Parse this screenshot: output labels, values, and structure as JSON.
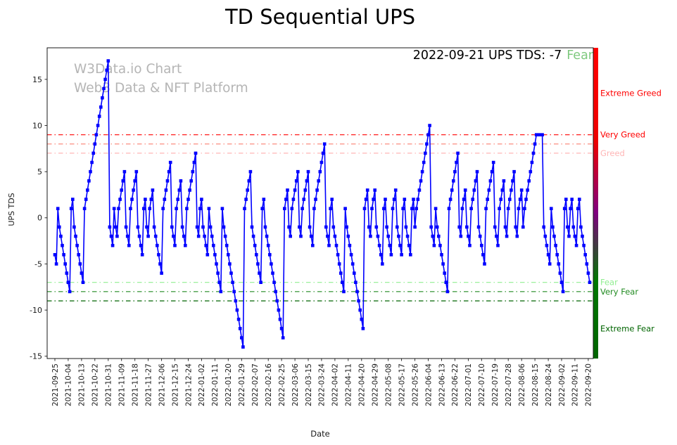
{
  "title": "TD Sequential UPS",
  "watermark": {
    "line1": "W3Data.io Chart",
    "line2": "Web3 Data & NFT Platform"
  },
  "annotation": {
    "text": "2022-09-21 UPS TDS: -7",
    "status": "Fear",
    "status_color": "#7fc97f"
  },
  "chart_data": {
    "type": "line",
    "series_name": "UPS TDS",
    "title": "TD Sequential UPS",
    "xlabel": "Date",
    "ylabel": "UPS TDS",
    "line_color": "#0000ff",
    "marker": "square",
    "start_date": "2021-09-25",
    "end_date": "2022-09-21",
    "final_point": {
      "date": "2022-09-21",
      "value": -7
    },
    "ylim": [
      -15.25,
      18.42
    ],
    "y_ticks": [
      -15,
      -10,
      -5,
      0,
      5,
      10,
      15
    ],
    "x_tick_step": 9,
    "x_tick_labels": [
      "2021-09-25",
      "2021-10-04",
      "2021-10-13",
      "2021-10-22",
      "2021-10-31",
      "2021-11-09",
      "2021-11-18",
      "2021-11-27",
      "2021-12-06",
      "2021-12-15",
      "2021-12-24",
      "2022-01-02",
      "2022-01-11",
      "2022-01-20",
      "2022-01-29",
      "2022-02-07",
      "2022-02-16",
      "2022-02-25",
      "2022-03-06",
      "2022-03-15",
      "2022-03-24",
      "2022-04-02",
      "2022-04-11",
      "2022-04-20",
      "2022-04-29",
      "2022-05-08",
      "2022-05-17",
      "2022-05-26",
      "2022-06-04",
      "2022-06-13",
      "2022-06-22",
      "2022-07-01",
      "2022-07-10",
      "2022-07-19",
      "2022-07-28",
      "2022-08-06",
      "2022-08-15",
      "2022-08-24",
      "2022-09-02",
      "2022-09-11",
      "2022-09-20"
    ],
    "values": [
      -4,
      -5,
      1,
      -1,
      -2,
      -3,
      -4,
      -5,
      -6,
      -7,
      -8,
      1,
      2,
      -1,
      -2,
      -3,
      -4,
      -5,
      -6,
      -7,
      1,
      2,
      3,
      4,
      5,
      6,
      7,
      8,
      9,
      10,
      11,
      12,
      13,
      14,
      15,
      16,
      17,
      -1,
      -2,
      -3,
      1,
      -1,
      -2,
      1,
      2,
      3,
      4,
      5,
      -1,
      -2,
      -3,
      1,
      2,
      3,
      4,
      5,
      -1,
      -2,
      -3,
      -4,
      1,
      2,
      -1,
      -2,
      1,
      2,
      3,
      -1,
      -2,
      -3,
      -4,
      -5,
      -6,
      1,
      2,
      3,
      4,
      5,
      6,
      -1,
      -2,
      -3,
      1,
      2,
      3,
      4,
      -1,
      -2,
      -3,
      1,
      2,
      3,
      4,
      5,
      6,
      7,
      -1,
      -2,
      1,
      2,
      -1,
      -2,
      -3,
      -4,
      1,
      -1,
      -2,
      -3,
      -4,
      -5,
      -6,
      -7,
      -8,
      1,
      -1,
      -2,
      -3,
      -4,
      -5,
      -6,
      -7,
      -8,
      -9,
      -10,
      -11,
      -12,
      -13,
      -14,
      1,
      2,
      3,
      4,
      5,
      -1,
      -2,
      -3,
      -4,
      -5,
      -6,
      -7,
      1,
      2,
      -1,
      -2,
      -3,
      -4,
      -5,
      -6,
      -7,
      -8,
      -9,
      -10,
      -11,
      -12,
      -13,
      1,
      2,
      3,
      -1,
      -2,
      1,
      2,
      3,
      4,
      5,
      -1,
      -2,
      1,
      2,
      3,
      4,
      5,
      -1,
      -2,
      -3,
      1,
      2,
      3,
      4,
      5,
      6,
      7,
      8,
      -1,
      -2,
      -3,
      1,
      2,
      -1,
      -2,
      -3,
      -4,
      -5,
      -6,
      -7,
      -8,
      1,
      -1,
      -2,
      -3,
      -4,
      -5,
      -6,
      -7,
      -8,
      -9,
      -10,
      -11,
      -12,
      1,
      2,
      3,
      -1,
      -2,
      1,
      2,
      3,
      -1,
      -2,
      -3,
      -4,
      -5,
      1,
      2,
      -1,
      -2,
      -3,
      -4,
      1,
      2,
      3,
      -1,
      -2,
      -3,
      -4,
      1,
      2,
      -1,
      -2,
      -3,
      -4,
      1,
      2,
      -1,
      1,
      2,
      3,
      4,
      5,
      6,
      7,
      8,
      9,
      10,
      -1,
      -2,
      -3,
      1,
      -1,
      -2,
      -3,
      -4,
      -5,
      -6,
      -7,
      -8,
      1,
      2,
      3,
      4,
      5,
      6,
      7,
      -1,
      -2,
      1,
      2,
      3,
      -1,
      -2,
      -3,
      1,
      2,
      3,
      4,
      5,
      -1,
      -2,
      -3,
      -4,
      -5,
      1,
      2,
      3,
      4,
      5,
      6,
      -1,
      -2,
      -3,
      1,
      2,
      3,
      4,
      -1,
      -2,
      1,
      2,
      3,
      4,
      5,
      -1,
      -2,
      1,
      2,
      3,
      -1,
      1,
      2,
      3,
      4,
      5,
      6,
      7,
      8,
      9,
      9,
      9,
      9,
      9,
      -1,
      -2,
      -3,
      -4,
      -5,
      1,
      -1,
      -2,
      -3,
      -4,
      -5,
      -6,
      -7,
      -8,
      1,
      2,
      -1,
      -2,
      1,
      2,
      -1,
      -2,
      -3,
      1,
      2,
      -1,
      -2,
      -3,
      -4,
      -5,
      -6,
      -7
    ],
    "thresholds": [
      {
        "value": 9,
        "color": "#ff0000",
        "label": "Very Greed"
      },
      {
        "value": 8,
        "color": "#fa8072",
        "label": ""
      },
      {
        "value": 7,
        "color": "#ffb6b6",
        "label": "Greed"
      },
      {
        "value": -7,
        "color": "#90ee90",
        "label": "Fear"
      },
      {
        "value": -8,
        "color": "#228b22",
        "label": "Very Fear"
      },
      {
        "value": -9,
        "color": "#006400",
        "label": ""
      }
    ],
    "zone_labels": [
      {
        "value": 13.5,
        "color": "#ff0000",
        "label": "Extreme Greed"
      },
      {
        "value": -12,
        "color": "#006400",
        "label": "Extreme Fear"
      }
    ],
    "colorbar": {
      "stops": [
        {
          "offset": 0,
          "color": "#ff0000"
        },
        {
          "offset": 0.3,
          "color": "#ee0000"
        },
        {
          "offset": 0.53,
          "color": "#800080"
        },
        {
          "offset": 0.75,
          "color": "#007800"
        },
        {
          "offset": 1,
          "color": "#006400"
        }
      ]
    },
    "legend": "off",
    "grid": "off"
  }
}
